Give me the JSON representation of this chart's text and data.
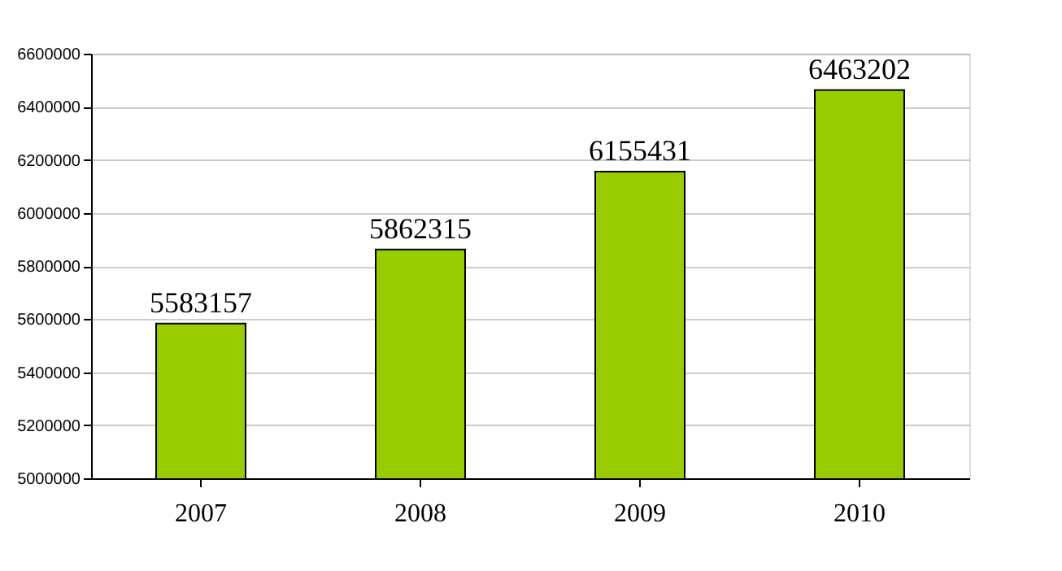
{
  "chart_data": {
    "type": "bar",
    "categories": [
      "2007",
      "2008",
      "2009",
      "2010"
    ],
    "values": [
      5583157,
      5862315,
      6155431,
      6463202
    ],
    "color": "#99cc00",
    "ylim": [
      5000000,
      6600000
    ],
    "yticks": [
      5000000,
      5200000,
      5400000,
      5600000,
      5800000,
      6000000,
      6200000,
      6400000,
      6600000
    ],
    "grid": "y",
    "data_labels": true
  }
}
